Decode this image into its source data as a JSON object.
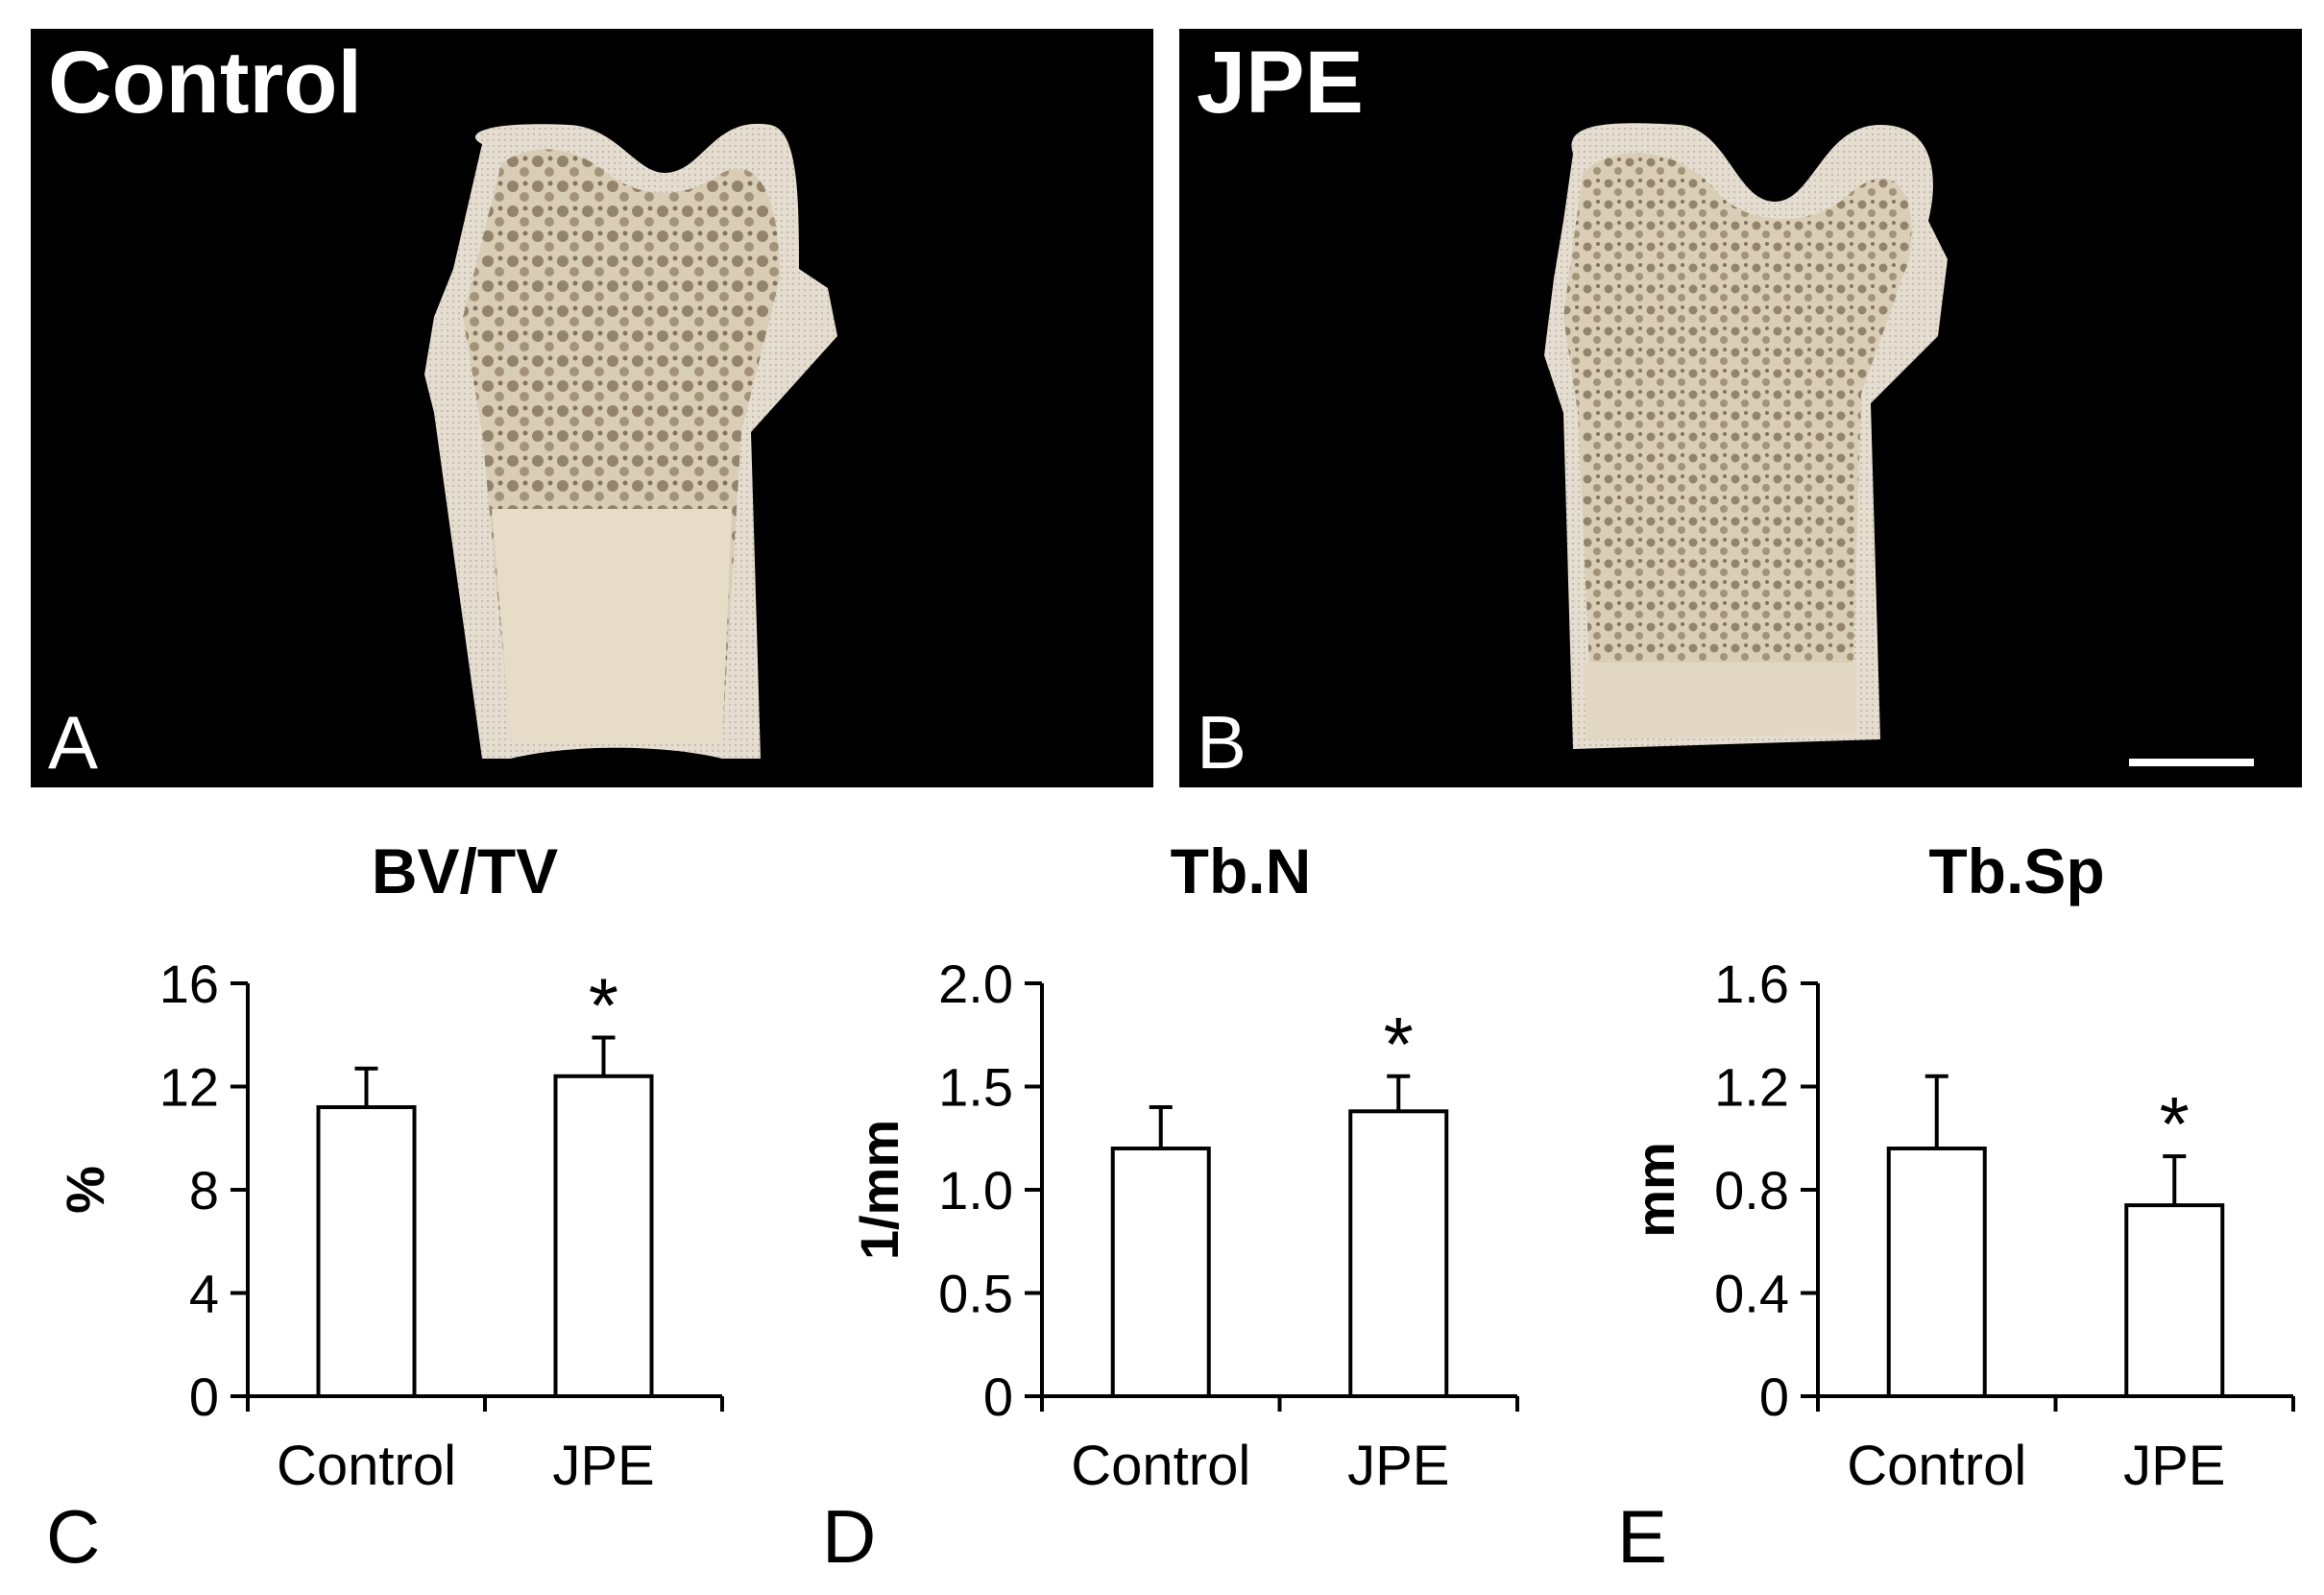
{
  "panels": {
    "a": {
      "title": "Control",
      "letter": "A"
    },
    "b": {
      "title": "JPE",
      "letter": "B"
    }
  },
  "chart_letters": [
    "C",
    "D",
    "E"
  ],
  "chart_data": [
    {
      "type": "bar",
      "title": "BV/TV",
      "ylabel": "%",
      "categories": [
        "Control",
        "JPE"
      ],
      "values": [
        11.2,
        12.4
      ],
      "error": [
        1.5,
        1.5
      ],
      "significant": [
        false,
        true
      ],
      "ylim": [
        0,
        16
      ],
      "yticks": [
        "0",
        "4",
        "8",
        "12",
        "16"
      ],
      "annotation": "*"
    },
    {
      "type": "bar",
      "title": "Tb.N",
      "ylabel": "1/mm",
      "categories": [
        "Control",
        "JPE"
      ],
      "values": [
        1.2,
        1.38
      ],
      "error": [
        0.2,
        0.17
      ],
      "significant": [
        false,
        true
      ],
      "ylim": [
        0,
        2.0
      ],
      "yticks": [
        "0",
        "0.5",
        "1.0",
        "1.5",
        "2.0"
      ],
      "annotation": "*"
    },
    {
      "type": "bar",
      "title": "Tb.Sp",
      "ylabel": "mm",
      "categories": [
        "Control",
        "JPE"
      ],
      "values": [
        0.96,
        0.74
      ],
      "error": [
        0.28,
        0.19
      ],
      "significant": [
        false,
        true
      ],
      "ylim": [
        0,
        1.6
      ],
      "yticks": [
        "0",
        "0.4",
        "0.8",
        "1.2",
        "1.6"
      ],
      "annotation": "*"
    }
  ]
}
